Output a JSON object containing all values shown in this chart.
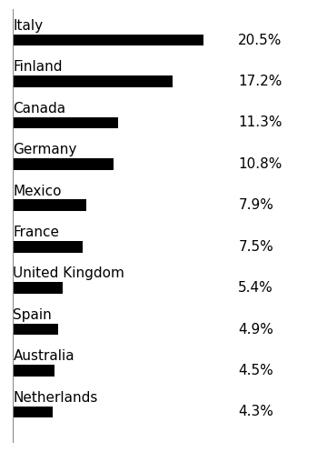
{
  "categories": [
    "Italy",
    "Finland",
    "Canada",
    "Germany",
    "Mexico",
    "France",
    "United Kingdom",
    "Spain",
    "Australia",
    "Netherlands"
  ],
  "values": [
    20.5,
    17.2,
    11.3,
    10.8,
    7.9,
    7.5,
    5.4,
    4.9,
    4.5,
    4.3
  ],
  "labels": [
    "20.5%",
    "17.2%",
    "11.3%",
    "10.8%",
    "7.9%",
    "7.5%",
    "5.4%",
    "4.9%",
    "4.5%",
    "4.3%"
  ],
  "bar_color": "#000000",
  "background_color": "#ffffff",
  "category_fontsize": 11,
  "value_label_fontsize": 11,
  "xlim": [
    0,
    24
  ],
  "bar_height": 0.28
}
